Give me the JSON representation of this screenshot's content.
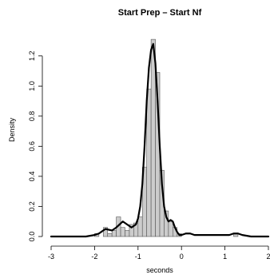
{
  "chart_data": {
    "type": "bar",
    "title": "Start Prep – Start Nf",
    "xlabel": "seconds",
    "ylabel": "Density",
    "xlim": [
      -3,
      2
    ],
    "ylim": [
      0,
      1.3
    ],
    "x_ticks": [
      -3,
      -2,
      -1,
      0,
      1,
      2
    ],
    "x_tick_labels": [
      "-3",
      "-2",
      "-1",
      "0",
      "1",
      "2"
    ],
    "y_ticks": [
      0.0,
      0.2,
      0.4,
      0.6,
      0.8,
      1.0,
      1.2
    ],
    "y_tick_labels": [
      "0.0",
      "0.2",
      "0.4",
      "0.6",
      "0.8",
      "1.0",
      "1.2"
    ],
    "grid": false,
    "colors": {
      "bar_fill": "#cccccc",
      "bar_stroke": "#555555",
      "density_line": "#000000",
      "axis": "#000000"
    },
    "histogram": {
      "bins": [
        {
          "x0": -2.0,
          "x1": -1.9,
          "density": 0.02
        },
        {
          "x0": -1.9,
          "x1": -1.8,
          "density": 0.0
        },
        {
          "x0": -1.8,
          "x1": -1.7,
          "density": 0.06
        },
        {
          "x0": -1.7,
          "x1": -1.6,
          "density": 0.02
        },
        {
          "x0": -1.6,
          "x1": -1.5,
          "density": 0.04
        },
        {
          "x0": -1.5,
          "x1": -1.4,
          "density": 0.13
        },
        {
          "x0": -1.4,
          "x1": -1.3,
          "density": 0.06
        },
        {
          "x0": -1.3,
          "x1": -1.2,
          "density": 0.04
        },
        {
          "x0": -1.2,
          "x1": -1.1,
          "density": 0.08
        },
        {
          "x0": -1.1,
          "x1": -1.0,
          "density": 0.09
        },
        {
          "x0": -1.0,
          "x1": -0.9,
          "density": 0.13
        },
        {
          "x0": -0.9,
          "x1": -0.8,
          "density": 0.46
        },
        {
          "x0": -0.8,
          "x1": -0.7,
          "density": 0.98
        },
        {
          "x0": -0.7,
          "x1": -0.6,
          "density": 1.31
        },
        {
          "x0": -0.6,
          "x1": -0.5,
          "density": 1.09
        },
        {
          "x0": -0.5,
          "x1": -0.4,
          "density": 0.44
        },
        {
          "x0": -0.4,
          "x1": -0.3,
          "density": 0.17
        },
        {
          "x0": -0.3,
          "x1": -0.2,
          "density": 0.1
        },
        {
          "x0": -0.2,
          "x1": -0.1,
          "density": 0.06
        },
        {
          "x0": -0.1,
          "x1": 0.0,
          "density": 0.02
        },
        {
          "x0": 1.2,
          "x1": 1.3,
          "density": 0.02
        }
      ]
    },
    "density_curve": {
      "x": [
        -3.0,
        -2.2,
        -2.0,
        -1.9,
        -1.75,
        -1.6,
        -1.5,
        -1.35,
        -1.25,
        -1.15,
        -1.05,
        -1.0,
        -0.95,
        -0.9,
        -0.85,
        -0.8,
        -0.75,
        -0.7,
        -0.65,
        -0.6,
        -0.55,
        -0.5,
        -0.45,
        -0.4,
        -0.35,
        -0.3,
        -0.25,
        -0.2,
        -0.15,
        -0.1,
        -0.05,
        0.0,
        0.1,
        0.2,
        0.3,
        0.4,
        0.5,
        0.6,
        0.7,
        0.8,
        0.9,
        1.0,
        1.1,
        1.2,
        1.25,
        1.3,
        1.4,
        1.6,
        2.0
      ],
      "y": [
        0.0,
        0.0,
        0.01,
        0.02,
        0.05,
        0.04,
        0.06,
        0.1,
        0.08,
        0.06,
        0.08,
        0.12,
        0.2,
        0.35,
        0.6,
        0.9,
        1.12,
        1.24,
        1.28,
        1.15,
        0.9,
        0.6,
        0.35,
        0.2,
        0.13,
        0.1,
        0.11,
        0.1,
        0.06,
        0.03,
        0.01,
        0.01,
        0.02,
        0.02,
        0.01,
        0.01,
        0.01,
        0.01,
        0.01,
        0.01,
        0.01,
        0.01,
        0.01,
        0.02,
        0.02,
        0.02,
        0.01,
        0.0,
        0.0
      ]
    }
  }
}
